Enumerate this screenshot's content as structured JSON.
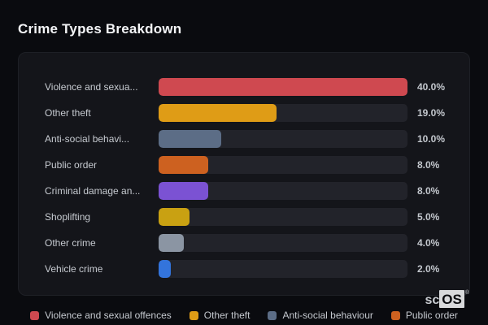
{
  "page": {
    "title": "Crime Types Breakdown"
  },
  "colors": {
    "page_bg": "#0a0b0f",
    "panel_bg": "#14151a",
    "panel_border": "#1e2026",
    "bar_track": "#22232a",
    "title_text": "#f4f5f7",
    "label_text": "#c6cad0",
    "value_text": "#c3c7cd",
    "legend_text": "#c5c9cf"
  },
  "chart_data": {
    "type": "bar",
    "orientation": "horizontal",
    "title": "Crime Types Breakdown",
    "xlabel": "",
    "ylabel": "",
    "value_unit": "%",
    "axis_max": 40.0,
    "grid": false,
    "legend_position": "bottom",
    "categories": [
      "Violence and sexua...",
      "Other theft",
      "Anti-social behavi...",
      "Public order",
      "Criminal damage an...",
      "Shoplifting",
      "Other crime",
      "Vehicle crime"
    ],
    "values": [
      40.0,
      19.0,
      10.0,
      8.0,
      8.0,
      5.0,
      4.0,
      2.0
    ],
    "value_labels": [
      "40.0%",
      "19.0%",
      "10.0%",
      "8.0%",
      "8.0%",
      "5.0%",
      "4.0%",
      "2.0%"
    ],
    "bar_colors": [
      "#cf4950",
      "#df9c16",
      "#5c6d86",
      "#cd6120",
      "#7b52d3",
      "#c9a112",
      "#8b95a3",
      "#3374dc"
    ]
  },
  "legend": {
    "items": [
      {
        "label": "Violence and sexual offences",
        "color": "#cf4950"
      },
      {
        "label": "Other theft",
        "color": "#df9c16"
      },
      {
        "label": "Anti-social behaviour",
        "color": "#5c6d86"
      },
      {
        "label": "Public order",
        "color": "#cd6120"
      }
    ]
  },
  "watermark": {
    "prefix": "sc",
    "suffix": "OS",
    "registered": "®"
  }
}
